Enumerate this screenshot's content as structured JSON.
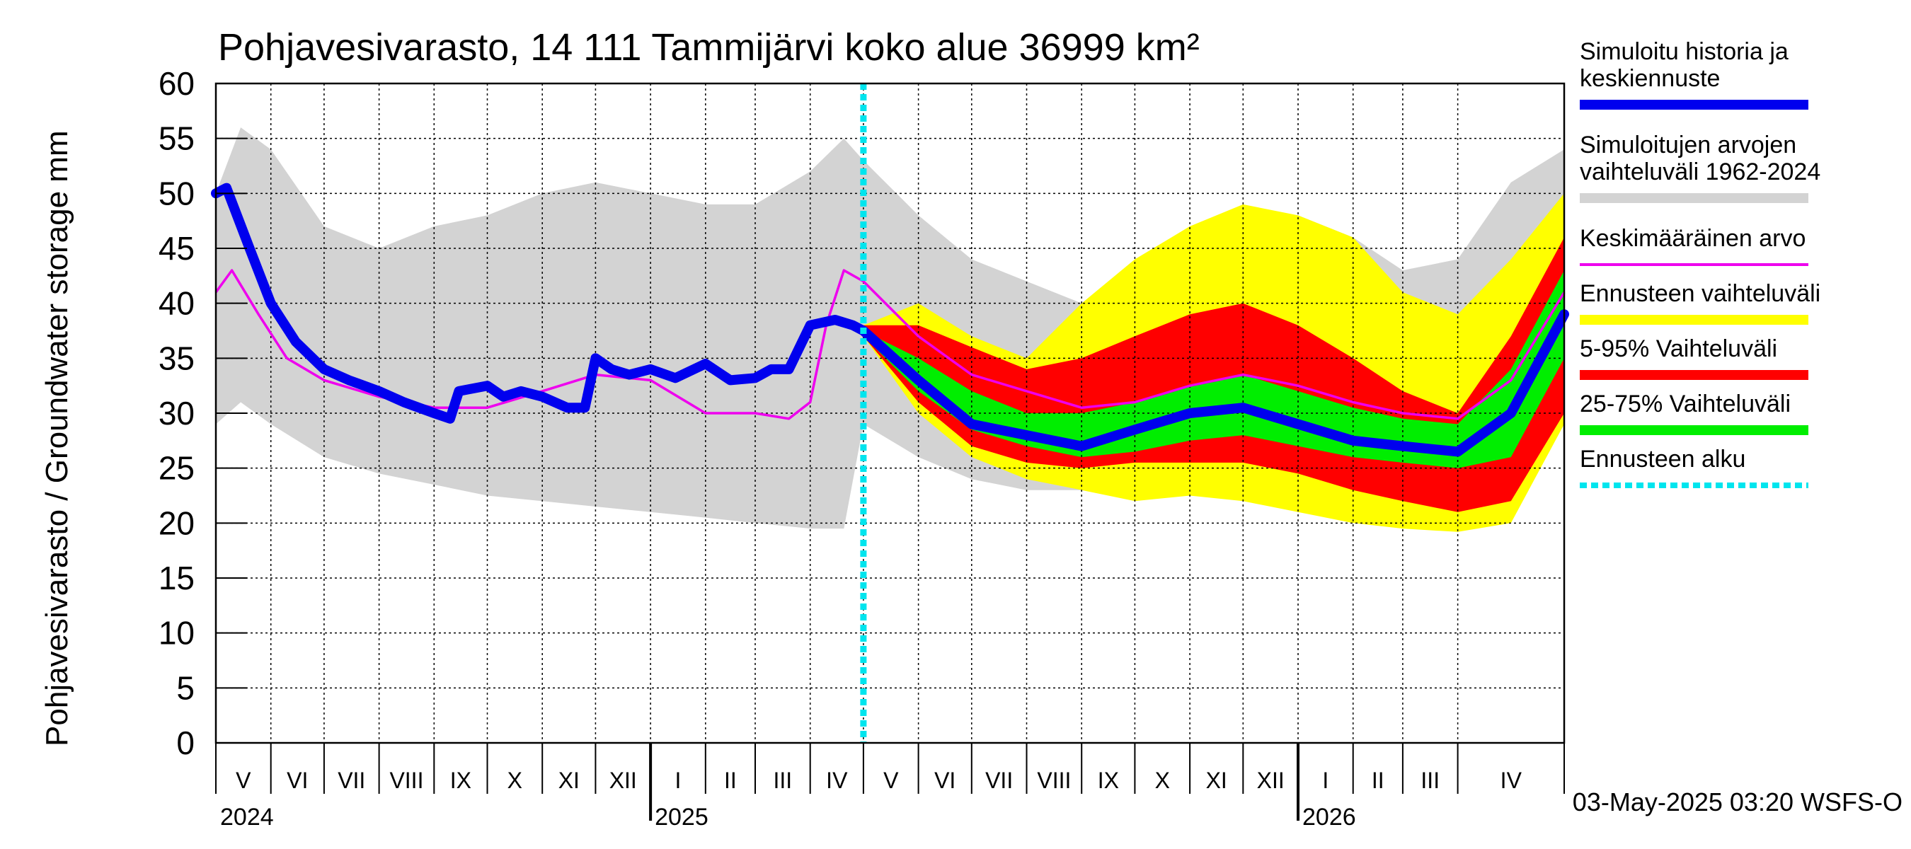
{
  "chart_data": {
    "type": "area",
    "title": "Pohjavesivarasto, 14 111 Tammijärvi koko alue 36999 km²",
    "ylabel": "Pohjavesivarasto / Groundwater storage   mm",
    "ylim": [
      0,
      60
    ],
    "yticks": [
      "0",
      "5",
      "10",
      "15",
      "20",
      "25",
      "30",
      "35",
      "40",
      "45",
      "50",
      "55",
      "60"
    ],
    "xlim": [
      "2024-05-01",
      "2026-05-31"
    ],
    "months": [
      {
        "label": "V",
        "start": "2024-05-01"
      },
      {
        "label": "VI",
        "start": "2024-06-01"
      },
      {
        "label": "VII",
        "start": "2024-07-01"
      },
      {
        "label": "VIII",
        "start": "2024-08-01"
      },
      {
        "label": "IX",
        "start": "2024-09-01"
      },
      {
        "label": "X",
        "start": "2024-10-01"
      },
      {
        "label": "XI",
        "start": "2024-11-01"
      },
      {
        "label": "XII",
        "start": "2024-12-01"
      },
      {
        "label": "I",
        "start": "2025-01-01"
      },
      {
        "label": "II",
        "start": "2025-02-01"
      },
      {
        "label": "III",
        "start": "2025-03-01"
      },
      {
        "label": "IV",
        "start": "2025-04-01"
      },
      {
        "label": "V",
        "start": "2025-05-01"
      },
      {
        "label": "VI",
        "start": "2025-06-01"
      },
      {
        "label": "VII",
        "start": "2025-07-01"
      },
      {
        "label": "VIII",
        "start": "2025-08-01"
      },
      {
        "label": "IX",
        "start": "2025-09-01"
      },
      {
        "label": "X",
        "start": "2025-10-01"
      },
      {
        "label": "XI",
        "start": "2025-11-01"
      },
      {
        "label": "XII",
        "start": "2025-12-01"
      },
      {
        "label": "I",
        "start": "2026-01-01"
      },
      {
        "label": "II",
        "start": "2026-02-01"
      },
      {
        "label": "III",
        "start": "2026-03-01"
      },
      {
        "label": "IV",
        "start": "2026-04-01"
      }
    ],
    "years": [
      {
        "label": "2024",
        "start": "2024-05-01"
      },
      {
        "label": "2025",
        "start": "2025-01-01"
      },
      {
        "label": "2026",
        "start": "2026-01-01"
      }
    ],
    "forecast_start": "2025-05-01",
    "grid": true,
    "legend_position": "right",
    "timestamp": "03-May-2025 03:20 WSFS-O",
    "colors": {
      "history": "#0000ee",
      "range_hist": "#d3d3d3",
      "mean": "#ee00ee",
      "forecast_range": "#ffff00",
      "p5_95": "#ff0000",
      "p25_75": "#00ee00",
      "forecast_start": "#00e5ee"
    },
    "legend": [
      {
        "label": "Simuloitu historia ja\nkeskiennuste",
        "color": "#0000ee",
        "style": "thick"
      },
      {
        "label": "Simuloitujen arvojen\nvaihteluväli 1962-2024",
        "color": "#d3d3d3",
        "style": "thick"
      },
      {
        "label": "Keskimääräinen arvo",
        "color": "#ee00ee",
        "style": "thin"
      },
      {
        "label": "Ennusteen vaihteluväli",
        "color": "#ffff00",
        "style": "thick"
      },
      {
        "label": "5-95% Vaihteluväli",
        "color": "#ff0000",
        "style": "thick"
      },
      {
        "label": "25-75% Vaihteluväli",
        "color": "#00ee00",
        "style": "thick"
      },
      {
        "label": "Ennusteen alku",
        "color": "#00e5ee",
        "style": "dashed"
      }
    ],
    "series": [
      {
        "name": "Simulated range (upper)",
        "x": [
          "2024-05-01",
          "2024-05-15",
          "2024-06-01",
          "2024-07-01",
          "2024-08-01",
          "2024-09-01",
          "2024-10-01",
          "2024-11-01",
          "2024-12-01",
          "2025-01-01",
          "2025-02-01",
          "2025-03-01",
          "2025-04-01",
          "2025-04-20",
          "2025-05-01",
          "2025-06-01",
          "2025-07-01",
          "2025-08-01",
          "2025-09-01",
          "2025-10-01",
          "2025-11-01",
          "2025-12-01",
          "2026-01-01",
          "2026-02-01",
          "2026-03-01",
          "2026-04-01",
          "2026-05-01",
          "2026-05-31"
        ],
        "values": [
          50,
          56,
          54,
          47,
          45,
          47,
          48,
          50,
          51,
          50,
          49,
          49,
          52,
          55,
          53,
          48,
          44,
          42,
          40,
          42,
          44,
          47,
          48,
          46,
          43,
          44,
          51,
          54
        ]
      },
      {
        "name": "Simulated range (lower)",
        "x": [
          "2024-05-01",
          "2024-05-15",
          "2024-06-01",
          "2024-07-01",
          "2024-08-01",
          "2024-09-01",
          "2024-10-01",
          "2024-11-01",
          "2024-12-01",
          "2025-01-01",
          "2025-02-01",
          "2025-03-01",
          "2025-04-01",
          "2025-04-20",
          "2025-05-01",
          "2025-06-01",
          "2025-07-01",
          "2025-08-01",
          "2025-09-01",
          "2025-10-01",
          "2025-11-01",
          "2025-12-01",
          "2026-01-01",
          "2026-02-01",
          "2026-03-01",
          "2026-04-01",
          "2026-05-01",
          "2026-05-31"
        ],
        "values": [
          29,
          31,
          29,
          26,
          24.5,
          23.5,
          22.5,
          22,
          21.5,
          21,
          20.5,
          20,
          19.5,
          19.5,
          29,
          26,
          24,
          23,
          23,
          24,
          24.5,
          24,
          22.5,
          21,
          20,
          19.5,
          25,
          29
        ]
      },
      {
        "name": "Forecast range (upper)",
        "x": [
          "2025-05-01",
          "2025-06-01",
          "2025-07-01",
          "2025-08-01",
          "2025-09-01",
          "2025-10-01",
          "2025-11-01",
          "2025-12-01",
          "2026-01-01",
          "2026-02-01",
          "2026-03-01",
          "2026-04-01",
          "2026-05-01",
          "2026-05-31"
        ],
        "values": [
          38,
          40,
          37,
          35,
          40,
          44,
          47,
          49,
          48,
          46,
          41,
          39,
          44,
          50
        ]
      },
      {
        "name": "Forecast range (lower)",
        "x": [
          "2025-05-01",
          "2025-06-01",
          "2025-07-01",
          "2025-08-01",
          "2025-09-01",
          "2025-10-01",
          "2025-11-01",
          "2025-12-01",
          "2026-01-01",
          "2026-02-01",
          "2026-03-01",
          "2026-04-01",
          "2026-05-01",
          "2026-05-31"
        ],
        "values": [
          37,
          30,
          26,
          24,
          23,
          22,
          22.5,
          22,
          21,
          20,
          19.5,
          19.2,
          20,
          29
        ]
      },
      {
        "name": "5-95% (upper)",
        "x": [
          "2025-05-01",
          "2025-06-01",
          "2025-07-01",
          "2025-08-01",
          "2025-09-01",
          "2025-10-01",
          "2025-11-01",
          "2025-12-01",
          "2026-01-01",
          "2026-02-01",
          "2026-03-01",
          "2026-04-01",
          "2026-05-01",
          "2026-05-31"
        ],
        "values": [
          38,
          38,
          36,
          34,
          35,
          37,
          39,
          40,
          38,
          35,
          32,
          30,
          37,
          46
        ]
      },
      {
        "name": "5-95% (lower)",
        "x": [
          "2025-05-01",
          "2025-06-01",
          "2025-07-01",
          "2025-08-01",
          "2025-09-01",
          "2025-10-01",
          "2025-11-01",
          "2025-12-01",
          "2026-01-01",
          "2026-02-01",
          "2026-03-01",
          "2026-04-01",
          "2026-05-01",
          "2026-05-31"
        ],
        "values": [
          37,
          31,
          27,
          25.5,
          25,
          25.5,
          25.5,
          25.5,
          24.5,
          23,
          22,
          21,
          22,
          30
        ]
      },
      {
        "name": "25-75% (upper)",
        "x": [
          "2025-05-01",
          "2025-06-01",
          "2025-07-01",
          "2025-08-01",
          "2025-09-01",
          "2025-10-01",
          "2025-11-01",
          "2025-12-01",
          "2026-01-01",
          "2026-02-01",
          "2026-03-01",
          "2026-04-01",
          "2026-05-01",
          "2026-05-31"
        ],
        "values": [
          37.5,
          35,
          32,
          30,
          30,
          31,
          32.5,
          33.5,
          32,
          30.5,
          29.5,
          29,
          34,
          43
        ]
      },
      {
        "name": "25-75% (lower)",
        "x": [
          "2025-05-01",
          "2025-06-01",
          "2025-07-01",
          "2025-08-01",
          "2025-09-01",
          "2025-10-01",
          "2025-11-01",
          "2025-12-01",
          "2026-01-01",
          "2026-02-01",
          "2026-03-01",
          "2026-04-01",
          "2026-05-01",
          "2026-05-31"
        ],
        "values": [
          37,
          32,
          28.5,
          27,
          26,
          26.5,
          27.5,
          28,
          27,
          26,
          25.5,
          25,
          26,
          35
        ]
      },
      {
        "name": "Simuloitu historia ja keskiennuste",
        "x": [
          "2024-05-01",
          "2024-05-07",
          "2024-05-20",
          "2024-06-01",
          "2024-06-15",
          "2024-07-01",
          "2024-07-15",
          "2024-08-01",
          "2024-08-15",
          "2024-09-01",
          "2024-09-10",
          "2024-09-15",
          "2024-10-01",
          "2024-10-10",
          "2024-10-20",
          "2024-11-01",
          "2024-11-15",
          "2024-11-25",
          "2024-12-01",
          "2024-12-10",
          "2024-12-20",
          "2025-01-01",
          "2025-01-15",
          "2025-02-01",
          "2025-02-15",
          "2025-03-01",
          "2025-03-10",
          "2025-03-20",
          "2025-04-01",
          "2025-04-15",
          "2025-04-25",
          "2025-05-01",
          "2025-06-01",
          "2025-07-01",
          "2025-08-01",
          "2025-09-01",
          "2025-10-01",
          "2025-11-01",
          "2025-12-01",
          "2026-01-01",
          "2026-02-01",
          "2026-03-01",
          "2026-04-01",
          "2026-05-01",
          "2026-05-31"
        ],
        "values": [
          50,
          50.5,
          45,
          40,
          36.5,
          34,
          33,
          32,
          31,
          30,
          29.5,
          32,
          32.5,
          31.5,
          32,
          31.5,
          30.5,
          30.5,
          35,
          34,
          33.5,
          34,
          33.2,
          34.5,
          33,
          33.2,
          34,
          34,
          38,
          38.5,
          38,
          37.5,
          33,
          29,
          28,
          27,
          28.5,
          30,
          30.5,
          29,
          27.5,
          27,
          26.5,
          30,
          39
        ]
      },
      {
        "name": "Keskimääräinen arvo",
        "x": [
          "2024-05-01",
          "2024-05-10",
          "2024-05-25",
          "2024-06-10",
          "2024-07-01",
          "2024-08-01",
          "2024-09-01",
          "2024-10-01",
          "2024-11-01",
          "2024-12-01",
          "2025-01-01",
          "2025-02-01",
          "2025-03-01",
          "2025-03-20",
          "2025-04-01",
          "2025-04-10",
          "2025-04-20",
          "2025-05-01",
          "2025-06-01",
          "2025-07-01",
          "2025-08-01",
          "2025-09-01",
          "2025-10-01",
          "2025-11-01",
          "2025-12-01",
          "2026-01-01",
          "2026-02-01",
          "2026-03-01",
          "2026-04-01",
          "2026-05-01",
          "2026-05-31"
        ],
        "values": [
          41,
          43,
          39,
          35,
          33,
          31.5,
          30.5,
          30.5,
          32,
          33.5,
          33,
          30,
          30,
          29.5,
          31,
          38,
          43,
          42,
          37,
          33.5,
          32,
          30.5,
          31,
          32.5,
          33.5,
          32.5,
          31,
          30,
          29.5,
          33,
          41
        ]
      }
    ]
  }
}
